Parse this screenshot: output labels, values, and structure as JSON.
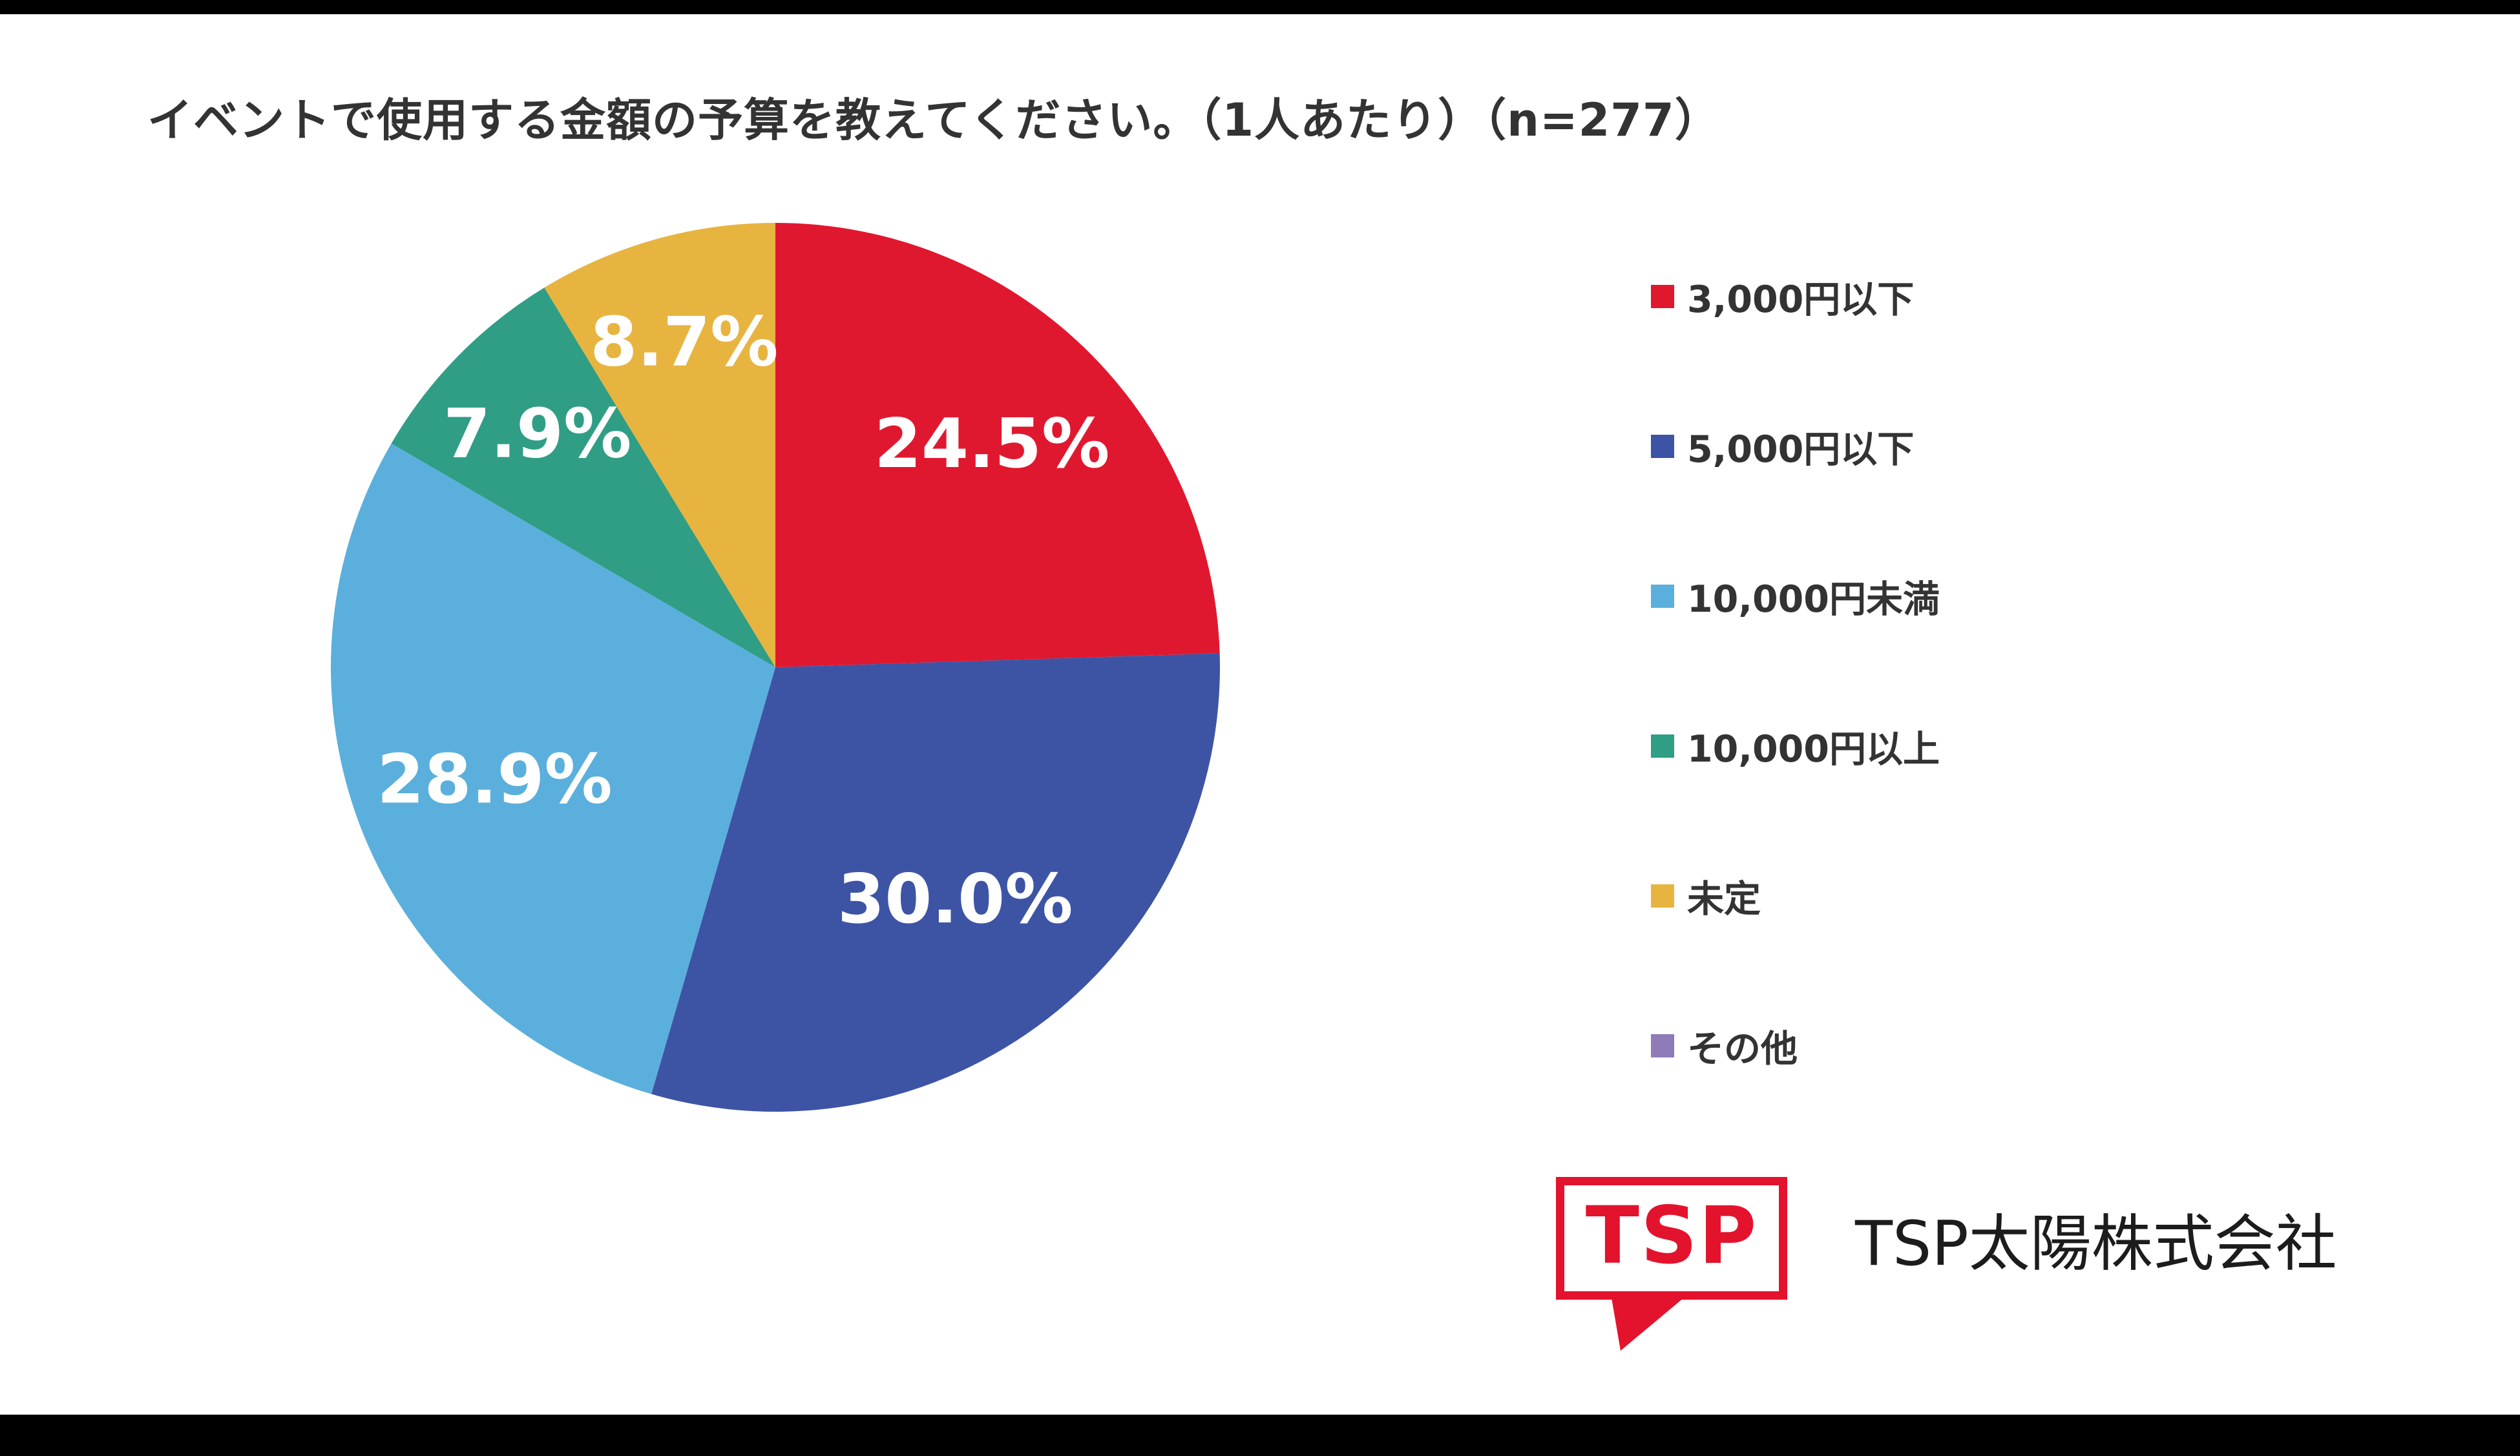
{
  "page": {
    "title": "イベントで使用する金額の予算を教えてください。（1人あたり）（n=277）"
  },
  "chart_data": {
    "type": "pie",
    "title": "イベントで使用する金額の予算を教えてください。（1人あたり）",
    "sample_size_label": "n=277",
    "categories": [
      "3,000円以下",
      "5,000円以下",
      "10,000円未満",
      "10,000円以上",
      "未定",
      "その他"
    ],
    "values": [
      24.5,
      30.0,
      28.9,
      7.9,
      8.7,
      0
    ],
    "labels": [
      "24.5%",
      "30.0%",
      "28.9%",
      "7.9%",
      "8.7%",
      ""
    ],
    "colors": [
      "#e0182f",
      "#3d54a5",
      "#5bafdc",
      "#2f9e85",
      "#e7b440",
      "#8e7bb8"
    ],
    "start_angle_deg": 0,
    "direction": "clockwise",
    "legend_position": "right",
    "label_radius_factors": [
      0.7,
      0.66,
      0.68,
      0.75,
      0.76,
      0
    ]
  },
  "legend": {
    "items": [
      {
        "label": "3,000円以下",
        "color": "#e0182f"
      },
      {
        "label": "5,000円以下",
        "color": "#3d54a5"
      },
      {
        "label": "10,000円未満",
        "color": "#5bafdc"
      },
      {
        "label": "10,000円以上",
        "color": "#2f9e85"
      },
      {
        "label": "未定",
        "color": "#e7b440"
      },
      {
        "label": "その他",
        "color": "#8e7bb8"
      }
    ]
  },
  "footer": {
    "logo_text": "TSP",
    "company_name": "TSP太陽株式会社"
  }
}
